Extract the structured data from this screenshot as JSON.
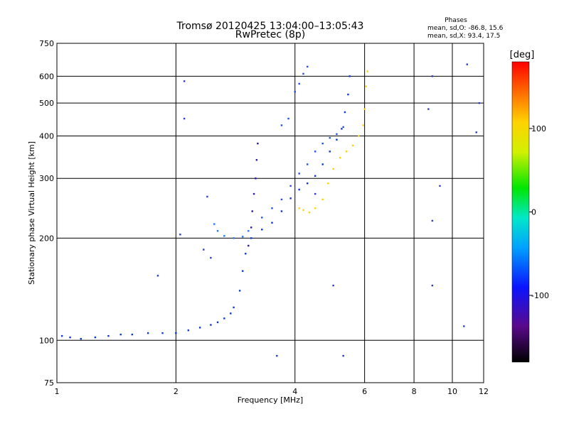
{
  "chart_data": {
    "type": "scatter",
    "title": "Tromsø 20120425 13:04:00–13:05:43",
    "subtitle": "RwPretec (8p)",
    "xlabel": "Frequency [MHz]",
    "ylabel": "Stationary phase Virtual Height [km]",
    "x_scale": "log",
    "y_scale": "log",
    "xlim": [
      1,
      12
    ],
    "ylim": [
      75,
      750
    ],
    "x_ticks": [
      "1",
      "2",
      "4",
      "6",
      "8",
      "10",
      "12"
    ],
    "y_ticks": [
      "75",
      "100",
      "200",
      "300",
      "400",
      "500",
      "600",
      "750"
    ],
    "grid": true,
    "stats": {
      "heading": "Phases",
      "line_o": "mean, sd,O: -86.8, 15.6",
      "line_x": "mean, sd,X:  93.4, 17.5"
    },
    "colorbar": {
      "label": "[deg]",
      "ticks": [
        "100",
        "0",
        "-100"
      ],
      "range": [
        -180,
        180
      ]
    },
    "series": [
      {
        "color_key": "blue_trace",
        "color": "#0a37d2",
        "points": [
          [
            1.03,
            103
          ],
          [
            1.08,
            102
          ],
          [
            1.15,
            101
          ],
          [
            1.25,
            102
          ],
          [
            1.35,
            103
          ],
          [
            1.45,
            104
          ],
          [
            1.55,
            104
          ],
          [
            1.7,
            105
          ],
          [
            1.85,
            105
          ],
          [
            2.0,
            105
          ],
          [
            2.15,
            107
          ],
          [
            2.3,
            109
          ],
          [
            2.45,
            111
          ],
          [
            2.55,
            113
          ],
          [
            2.65,
            116
          ],
          [
            2.75,
            120
          ],
          [
            2.8,
            125
          ],
          [
            2.9,
            140
          ],
          [
            2.95,
            160
          ],
          [
            3.0,
            180
          ],
          [
            3.1,
            200
          ],
          [
            3.3,
            212
          ],
          [
            3.5,
            222
          ],
          [
            3.7,
            240
          ],
          [
            3.9,
            262
          ],
          [
            4.1,
            278
          ],
          [
            4.3,
            290
          ],
          [
            4.5,
            305
          ],
          [
            4.7,
            330
          ],
          [
            4.9,
            360
          ],
          [
            5.1,
            390
          ],
          [
            5.25,
            420
          ],
          [
            5.35,
            470
          ],
          [
            5.45,
            530
          ],
          [
            5.5,
            600
          ]
        ]
      },
      {
        "color_key": "dark_purple_cusp",
        "color": "#3414a0",
        "points": [
          [
            3.05,
            190
          ],
          [
            3.1,
            215
          ],
          [
            3.12,
            240
          ],
          [
            3.15,
            270
          ],
          [
            3.18,
            300
          ],
          [
            3.2,
            340
          ],
          [
            3.22,
            380
          ]
        ]
      },
      {
        "color_key": "blue_cusp",
        "color": "#1e50e6",
        "points": [
          [
            3.3,
            230
          ],
          [
            3.5,
            245
          ],
          [
            3.7,
            260
          ],
          [
            3.9,
            285
          ],
          [
            4.1,
            310
          ],
          [
            4.3,
            330
          ],
          [
            4.5,
            360
          ],
          [
            4.7,
            380
          ],
          [
            4.9,
            395
          ],
          [
            5.1,
            405
          ],
          [
            5.3,
            425
          ]
        ]
      },
      {
        "color_key": "blue_upper",
        "color": "#1e50e6",
        "points": [
          [
            3.7,
            430
          ],
          [
            3.85,
            450
          ],
          [
            4.0,
            540
          ],
          [
            4.1,
            570
          ],
          [
            4.2,
            610
          ],
          [
            4.3,
            640
          ]
        ]
      },
      {
        "color_key": "yellow_x_trace",
        "color": "#ffd200",
        "points": [
          [
            4.1,
            245
          ],
          [
            4.2,
            242
          ],
          [
            4.35,
            238
          ],
          [
            4.5,
            245
          ],
          [
            4.7,
            260
          ],
          [
            4.85,
            290
          ],
          [
            5.0,
            320
          ],
          [
            5.2,
            345
          ],
          [
            5.4,
            360
          ],
          [
            5.6,
            375
          ],
          [
            5.8,
            400
          ],
          [
            5.95,
            430
          ],
          [
            6.0,
            480
          ],
          [
            6.05,
            560
          ],
          [
            6.1,
            620
          ]
        ]
      },
      {
        "color_key": "light_blue_bump",
        "color": "#1e78ff",
        "points": [
          [
            2.5,
            220
          ],
          [
            2.55,
            210
          ],
          [
            2.65,
            203
          ],
          [
            2.8,
            200
          ],
          [
            2.95,
            202
          ],
          [
            3.05,
            210
          ]
        ]
      },
      {
        "color_key": "sparse_misc",
        "color": "#2a3cc8",
        "points": [
          [
            2.1,
            580
          ],
          [
            2.1,
            450
          ],
          [
            2.05,
            205
          ],
          [
            1.8,
            155
          ],
          [
            2.4,
            265
          ],
          [
            2.35,
            185
          ],
          [
            2.45,
            175
          ],
          [
            8.7,
            480
          ],
          [
            8.9,
            600
          ],
          [
            8.9,
            225
          ],
          [
            9.3,
            285
          ],
          [
            8.9,
            145
          ],
          [
            10.7,
            110
          ],
          [
            11.5,
            410
          ],
          [
            11.7,
            500
          ],
          [
            10.9,
            650
          ],
          [
            5.0,
            145
          ],
          [
            5.3,
            90
          ],
          [
            3.6,
            90
          ],
          [
            4.5,
            270
          ]
        ]
      }
    ]
  }
}
